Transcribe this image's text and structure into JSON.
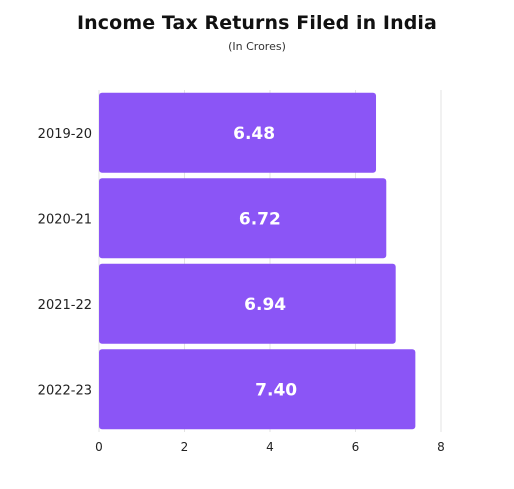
{
  "chart_data": {
    "type": "bar",
    "orientation": "horizontal",
    "title": "Income Tax Returns Filed in India",
    "subtitle": "(In Crores)",
    "categories": [
      "2019-20",
      "2020-21",
      "2021-22",
      "2022-23"
    ],
    "values": [
      6.48,
      6.72,
      6.94,
      7.4
    ],
    "value_labels": [
      "6.48",
      "6.72",
      "6.94",
      "7.40"
    ],
    "xlim": [
      0,
      8
    ],
    "xticks": [
      0,
      2,
      4,
      6,
      8
    ],
    "grid": true,
    "legend": "none",
    "bar_color": "#8b55f6"
  }
}
